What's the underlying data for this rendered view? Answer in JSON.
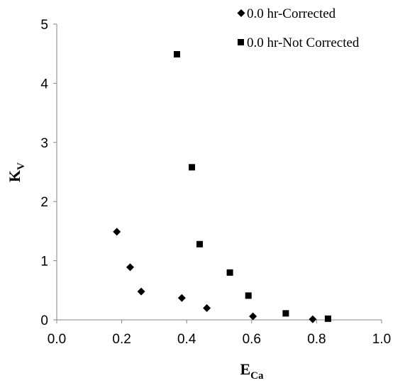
{
  "chart_data": {
    "type": "scatter",
    "xlabel": {
      "main": "E",
      "sub": "Ca"
    },
    "ylabel": {
      "main": "K",
      "sub": "V"
    },
    "xlim": [
      0.0,
      1.0
    ],
    "ylim": [
      0,
      5
    ],
    "x_ticks": [
      "0.0",
      "0.2",
      "0.4",
      "0.6",
      "0.8",
      "1.0"
    ],
    "x_tick_values": [
      0.0,
      0.2,
      0.4,
      0.6,
      0.8,
      1.0
    ],
    "y_ticks": [
      "0",
      "1",
      "2",
      "3",
      "4",
      "5"
    ],
    "y_tick_values": [
      0,
      1,
      2,
      3,
      4,
      5
    ],
    "grid": false,
    "legend_position": "top-right",
    "series": [
      {
        "name": "0.0 hr-Corrected",
        "marker": "diamond",
        "color": "#000000",
        "points": [
          {
            "x": 0.185,
            "y": 1.49
          },
          {
            "x": 0.226,
            "y": 0.89
          },
          {
            "x": 0.26,
            "y": 0.48
          },
          {
            "x": 0.385,
            "y": 0.37
          },
          {
            "x": 0.462,
            "y": 0.2
          },
          {
            "x": 0.604,
            "y": 0.06
          },
          {
            "x": 0.788,
            "y": 0.01
          }
        ]
      },
      {
        "name": "0.0 hr-Not Corrected",
        "marker": "square",
        "color": "#000000",
        "points": [
          {
            "x": 0.37,
            "y": 4.49
          },
          {
            "x": 0.416,
            "y": 2.58
          },
          {
            "x": 0.44,
            "y": 1.28
          },
          {
            "x": 0.533,
            "y": 0.8
          },
          {
            "x": 0.59,
            "y": 0.41
          },
          {
            "x": 0.705,
            "y": 0.11
          },
          {
            "x": 0.835,
            "y": 0.02
          }
        ]
      }
    ]
  }
}
